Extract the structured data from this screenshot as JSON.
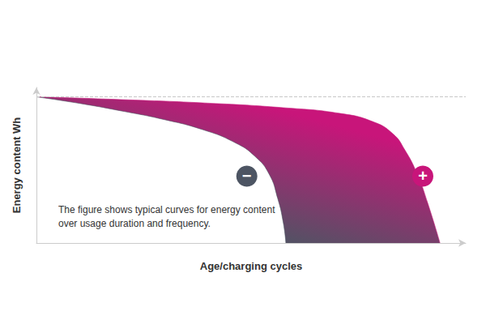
{
  "chart_data": {
    "type": "line",
    "x_label": "Age/charging cycles",
    "y_label": "Energy content Wh",
    "annotation": [
      "The figure shows typical curves for energy content",
      "over usage duration and frequency."
    ],
    "xlim": [
      0,
      100
    ],
    "ylim": [
      0,
      100
    ],
    "grid": false,
    "tick_labels": false,
    "series": [
      {
        "name": "−",
        "color": "#4d5563",
        "x": [
          0,
          10.4,
          19.8,
          29.2,
          38.7,
          46.2,
          50.9,
          54.2,
          56.2,
          57.5,
          58.1
        ],
        "values": [
          94,
          89.6,
          84.9,
          79.7,
          72.9,
          64.6,
          55.7,
          44.3,
          28.6,
          13,
          0
        ]
      },
      {
        "name": "+",
        "color": "#c8157a",
        "x": [
          0,
          19.8,
          38.7,
          57.5,
          70.8,
          78.3,
          83,
          85.8,
          88.7,
          91.1,
          94
        ],
        "values": [
          94,
          92.2,
          90.1,
          87,
          83.3,
          78.1,
          70.3,
          59.9,
          44.3,
          26,
          0
        ]
      }
    ]
  }
}
